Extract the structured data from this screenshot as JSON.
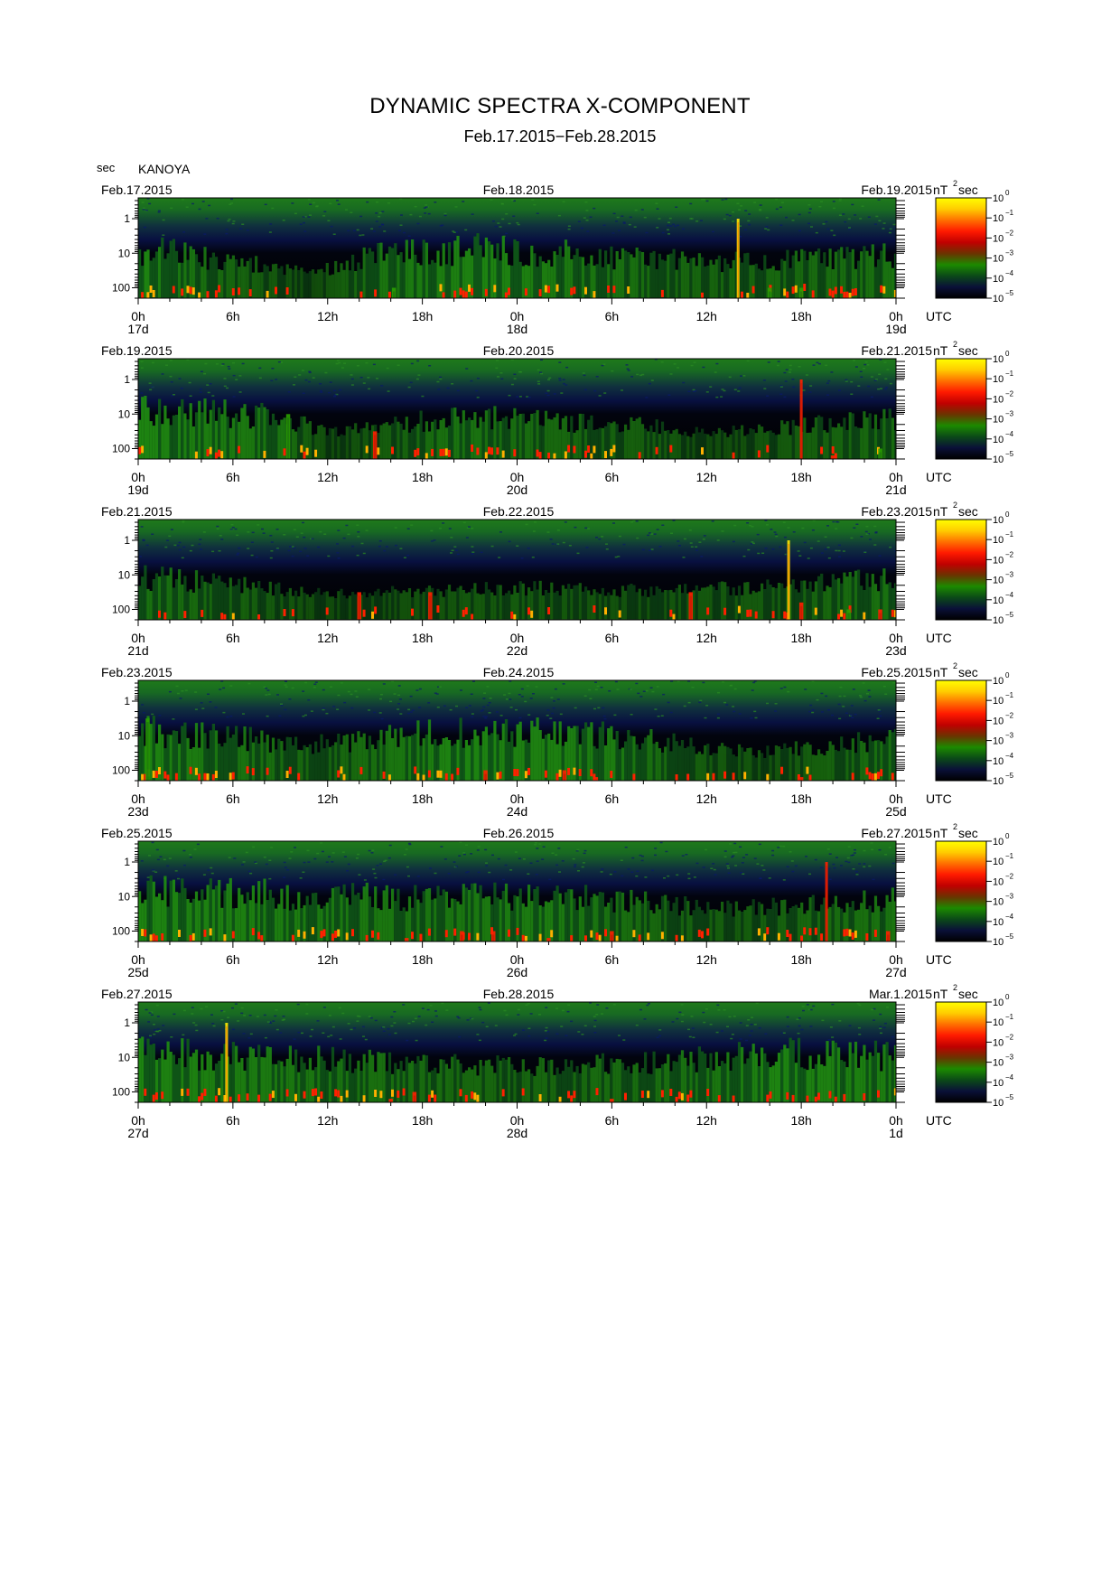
{
  "title": "DYNAMIC SPECTRA X-COMPONENT",
  "subtitle": "Feb.17.2015−Feb.28.2015",
  "y_unit": "sec",
  "station": "KANOYA",
  "colorbar": {
    "unit_base": "nT",
    "unit_exp": "2",
    "unit_tail": "sec",
    "ticks": [
      {
        "base": "10",
        "exp": "0"
      },
      {
        "base": "10",
        "exp": "−1"
      },
      {
        "base": "10",
        "exp": "−2"
      },
      {
        "base": "10",
        "exp": "−3"
      },
      {
        "base": "10",
        "exp": "−4"
      },
      {
        "base": "10",
        "exp": "−5"
      }
    ],
    "colors": [
      "#ffff00",
      "#ffcc00",
      "#ff7000",
      "#ff1a00",
      "#c00000",
      "#6a3400",
      "#1c8a00",
      "#0b4a18",
      "#0a1038",
      "#000000"
    ]
  },
  "chart_data": {
    "type": "heatmap",
    "x_unit": "UTC",
    "x_ticks": [
      "0h",
      "6h",
      "12h",
      "18h",
      "0h",
      "6h",
      "12h",
      "18h",
      "0h"
    ],
    "y_ticks": [
      "1",
      "10",
      "100"
    ],
    "y_scale": "log",
    "y_range_sec": [
      0.25,
      200
    ],
    "color_range_nT2sec": [
      1e-05,
      1
    ],
    "panels": [
      {
        "date_left": "Feb.17.2015",
        "date_mid": "Feb.18.2015",
        "date_right": "Feb.19.2015",
        "days": [
          "17d",
          "18d",
          "19d"
        ],
        "bursts": [
          [
            1,
            2.5,
            "r"
          ],
          [
            4.5,
            2.5,
            "g"
          ],
          [
            8.5,
            2.5,
            "r"
          ],
          [
            15.5,
            3.0,
            "r"
          ],
          [
            16.2,
            2.0,
            "g"
          ],
          [
            25,
            3.0,
            "r"
          ],
          [
            27,
            3.0,
            "r"
          ],
          [
            28.5,
            3.0,
            "r"
          ],
          [
            32,
            3.0,
            "r"
          ],
          [
            34.5,
            2.5,
            "r"
          ],
          [
            38,
            0.0,
            "y"
          ],
          [
            40,
            2.0,
            "g"
          ],
          [
            42,
            2.0,
            "g"
          ],
          [
            47.4,
            2.5,
            "r"
          ]
        ],
        "activity": [
          [
            0,
            1.0
          ],
          [
            11,
            0.3
          ],
          [
            15,
            0.8
          ],
          [
            22,
            1.0
          ],
          [
            36,
            0.6
          ],
          [
            44,
            0.7
          ],
          [
            48,
            0.8
          ]
        ]
      },
      {
        "date_left": "Feb.19.2015",
        "date_mid": "Feb.20.2015",
        "date_right": "Feb.21.2015",
        "days": [
          "19d",
          "20d",
          "21d"
        ],
        "bursts": [
          [
            0.8,
            2.8,
            "y"
          ],
          [
            1.8,
            2.5,
            "r"
          ],
          [
            4,
            2.8,
            "r"
          ],
          [
            5.5,
            2.8,
            "r"
          ],
          [
            9.5,
            1.0,
            "g"
          ],
          [
            15,
            1.5,
            "r"
          ],
          [
            20,
            2.5,
            "g"
          ],
          [
            26,
            2.5,
            "r"
          ],
          [
            30,
            2.8,
            "r"
          ],
          [
            42,
            0.0,
            "r"
          ],
          [
            44,
            2.2,
            "r"
          ],
          [
            47,
            2.0,
            "g"
          ]
        ],
        "activity": [
          [
            0,
            1.0
          ],
          [
            9,
            0.8
          ],
          [
            12,
            0.3
          ],
          [
            20,
            0.8
          ],
          [
            33,
            0.5
          ],
          [
            36,
            0.3
          ],
          [
            44,
            0.6
          ],
          [
            48,
            0.7
          ]
        ]
      },
      {
        "date_left": "Feb.21.2015",
        "date_mid": "Feb.22.2015",
        "date_right": "Feb.23.2015",
        "days": [
          "21d",
          "22d",
          "23d"
        ],
        "bursts": [
          [
            2,
            2.5,
            "g"
          ],
          [
            4.5,
            2.3,
            "r"
          ],
          [
            14,
            1.5,
            "r"
          ],
          [
            18.5,
            1.5,
            "r"
          ],
          [
            35,
            1.5,
            "r"
          ],
          [
            41.2,
            0.0,
            "y"
          ],
          [
            42,
            1.8,
            "r"
          ],
          [
            45,
            2.0,
            "g"
          ],
          [
            47,
            2.0,
            "r"
          ]
        ],
        "activity": [
          [
            0,
            0.8
          ],
          [
            8,
            0.5
          ],
          [
            12,
            0.3
          ],
          [
            24,
            0.5
          ],
          [
            30,
            0.4
          ],
          [
            40,
            0.5
          ],
          [
            48,
            0.8
          ]
        ]
      },
      {
        "date_left": "Feb.23.2015",
        "date_mid": "Feb.24.2015",
        "date_right": "Feb.25.2015",
        "days": [
          "23d",
          "24d",
          "25d"
        ],
        "bursts": [
          [
            0.6,
            0.5,
            "g"
          ],
          [
            2,
            2.5,
            "r"
          ],
          [
            6.5,
            2.5,
            "r"
          ],
          [
            9.5,
            2.5,
            "r"
          ],
          [
            13.5,
            2.5,
            "r"
          ],
          [
            17.5,
            2.5,
            "y"
          ],
          [
            22,
            2.0,
            "r"
          ],
          [
            24,
            2.3,
            "r"
          ],
          [
            27,
            2.0,
            "r"
          ],
          [
            29,
            2.2,
            "r"
          ],
          [
            37,
            2.3,
            "r"
          ],
          [
            42,
            2.2,
            "r"
          ]
        ],
        "activity": [
          [
            0,
            1.0
          ],
          [
            12,
            0.6
          ],
          [
            16,
            0.8
          ],
          [
            20,
            1.0
          ],
          [
            30,
            0.9
          ],
          [
            36,
            0.5
          ],
          [
            40,
            0.4
          ],
          [
            48,
            0.8
          ]
        ]
      },
      {
        "date_left": "Feb.25.2015",
        "date_mid": "Feb.26.2015",
        "date_right": "Feb.27.2015",
        "days": [
          "25d",
          "26d",
          "27d"
        ],
        "bursts": [
          [
            1.5,
            2.5,
            "r"
          ],
          [
            4,
            2.5,
            "r"
          ],
          [
            7.5,
            2.5,
            "r"
          ],
          [
            14,
            2.5,
            "r"
          ],
          [
            17,
            2.2,
            "r"
          ],
          [
            20.5,
            2.0,
            "r"
          ],
          [
            22.5,
            2.0,
            "r"
          ],
          [
            26,
            2.2,
            "r"
          ],
          [
            30,
            2.0,
            "r"
          ],
          [
            36,
            2.5,
            "r"
          ],
          [
            41,
            2.4,
            "r"
          ],
          [
            43.6,
            0.0,
            "r"
          ],
          [
            47.5,
            2.0,
            "r"
          ]
        ],
        "activity": [
          [
            0,
            1.0
          ],
          [
            10,
            0.9
          ],
          [
            18,
            0.8
          ],
          [
            26,
            0.9
          ],
          [
            34,
            0.6
          ],
          [
            38,
            0.5
          ],
          [
            44,
            0.7
          ],
          [
            48,
            0.8
          ]
        ]
      },
      {
        "date_left": "Feb.27.2015",
        "date_mid": "Feb.28.2015",
        "date_right": "Mar.1.2015",
        "days": [
          "27d",
          "28d",
          "1d"
        ],
        "bursts": [
          [
            3,
            2.5,
            "r"
          ],
          [
            5.6,
            0.0,
            "y"
          ],
          [
            14.5,
            2.3,
            "r"
          ],
          [
            16,
            2.2,
            "r"
          ],
          [
            17.5,
            2.0,
            "r"
          ],
          [
            26,
            2.3,
            "r"
          ],
          [
            30,
            2.2,
            "r"
          ],
          [
            37,
            2.5,
            "r"
          ],
          [
            39,
            2.4,
            "r"
          ],
          [
            42,
            2.3,
            "r"
          ],
          [
            44,
            2.5,
            "r"
          ],
          [
            46,
            2.5,
            "r"
          ]
        ],
        "activity": [
          [
            0,
            1.0
          ],
          [
            12,
            0.8
          ],
          [
            18,
            0.7
          ],
          [
            24,
            0.6
          ],
          [
            36,
            0.8
          ],
          [
            40,
            1.0
          ],
          [
            48,
            0.9
          ]
        ]
      }
    ]
  }
}
